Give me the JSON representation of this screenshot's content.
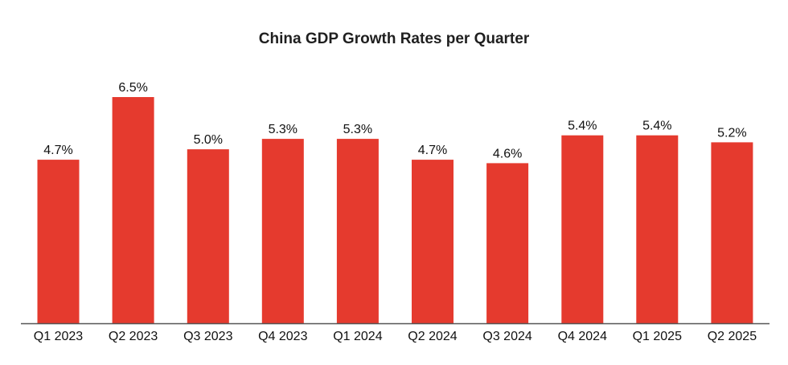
{
  "chart_data": {
    "type": "bar",
    "title": "China GDP Growth Rates per Quarter",
    "xlabel": "",
    "ylabel": "",
    "categories": [
      "Q1 2023",
      "Q2 2023",
      "Q3 2023",
      "Q4 2023",
      "Q1 2024",
      "Q2 2024",
      "Q3 2024",
      "Q4 2024",
      "Q1 2025",
      "Q2 2025"
    ],
    "values": [
      4.7,
      6.5,
      5.0,
      5.3,
      5.3,
      4.7,
      4.6,
      5.4,
      5.4,
      5.2
    ],
    "value_labels": [
      "4.7%",
      "6.5%",
      "5.0%",
      "5.3%",
      "5.3%",
      "4.7%",
      "4.6%",
      "5.4%",
      "5.4%",
      "5.2%"
    ],
    "ylim": [
      0,
      6.5
    ],
    "grid": false,
    "legend": "none",
    "colors": {
      "bar": "#e53a2e",
      "axis": "#555555",
      "text": "#111111"
    }
  }
}
